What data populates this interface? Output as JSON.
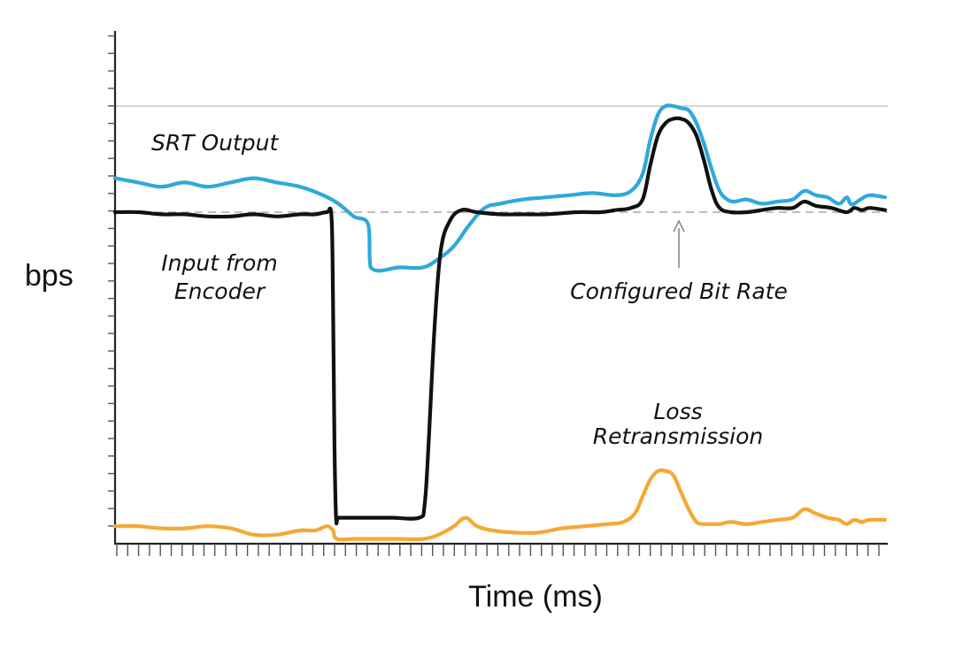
{
  "chart_data": {
    "type": "line",
    "xlabel": "Time (ms)",
    "ylabel": "bps",
    "grid": false,
    "xlim": [
      0,
      100
    ],
    "ylim": [
      0,
      100
    ],
    "reference_lines": [
      {
        "label": "",
        "y": 100,
        "style": "solid",
        "color": "#c8c8c8"
      },
      {
        "label": "Configured Bit Rate",
        "y": 75,
        "style": "dashed",
        "color": "#aaaaaa"
      }
    ],
    "series": [
      {
        "key": "srt",
        "name": "SRT Output",
        "color": "#2fa8dc",
        "x": [
          0,
          3,
          6,
          9,
          12,
          15,
          18,
          21,
          24,
          27,
          29,
          31,
          32.9,
          33.2,
          37,
          40,
          42,
          44,
          46,
          48,
          50,
          53,
          56,
          59,
          62,
          65,
          67,
          68.5,
          69.5,
          70.5,
          71.5,
          72.5,
          73.5,
          74.5,
          75.5,
          76.5,
          77.5,
          78.5,
          79.5,
          80.5,
          82,
          84,
          86,
          88,
          89.5,
          91,
          92.5,
          94,
          95,
          95.5,
          96,
          96.8,
          98,
          100
        ],
        "y": [
          83,
          82,
          81,
          82,
          81,
          82,
          83,
          82,
          81,
          79,
          77,
          74,
          72,
          62,
          62,
          62,
          64,
          67,
          72,
          76,
          77,
          78,
          78.5,
          79,
          79.5,
          79,
          80,
          84,
          92,
          98,
          100,
          100,
          99.5,
          99,
          96,
          91,
          85,
          80,
          78,
          77.5,
          78,
          77,
          77.5,
          78,
          80,
          79,
          78.5,
          77,
          78.5,
          77,
          77,
          78,
          79,
          78.5
        ]
      },
      {
        "key": "input",
        "name": "Input from Encoder",
        "color": "#111111",
        "x": [
          0,
          3,
          6,
          9,
          12,
          15,
          18,
          21,
          24,
          26,
          27.5,
          28.1,
          28.3,
          28.5,
          28.7,
          29,
          33,
          36,
          39.5,
          40.2,
          40.7,
          41.5,
          42.3,
          43.5,
          45,
          47,
          50,
          53,
          56,
          60,
          63,
          65,
          67,
          68.5,
          69.5,
          70.5,
          71.5,
          72.5,
          73.5,
          74.5,
          75.5,
          76.5,
          77.5,
          78.5,
          80,
          82,
          84,
          86,
          88,
          89.5,
          91,
          93,
          95,
          96,
          97,
          98,
          100
        ],
        "y": [
          75,
          75,
          74.5,
          74.5,
          74,
          74,
          74.5,
          74,
          74.5,
          74.5,
          75,
          74,
          55,
          20,
          3,
          3,
          3,
          3,
          3,
          6,
          20,
          48,
          66,
          73,
          75.5,
          75,
          74.5,
          74.5,
          74.5,
          75,
          75,
          75.5,
          76,
          78,
          86,
          93,
          96,
          97,
          97,
          96,
          93,
          87,
          80,
          76,
          75,
          75,
          75.5,
          76,
          76,
          77.5,
          76.5,
          76,
          75,
          76,
          75.5,
          76,
          75.5
        ]
      },
      {
        "key": "loss",
        "name": "Loss Retransmission",
        "color": "#f5a833",
        "x": [
          0,
          3,
          6,
          9,
          12,
          15,
          18,
          21,
          24,
          26,
          27.5,
          28.3,
          28.8,
          31,
          34,
          37,
          40,
          42,
          44,
          45.5,
          47,
          49,
          52,
          55,
          58,
          61,
          64,
          66,
          67.5,
          68.5,
          69.5,
          70.5,
          71.5,
          72.5,
          73.5,
          74.5,
          75.5,
          76.5,
          77.5,
          78.5,
          80,
          82,
          84,
          86,
          88,
          89.5,
          91,
          92.5,
          94,
          95,
          96,
          97,
          98,
          100
        ],
        "y": [
          1,
          1,
          0.5,
          0.5,
          1,
          0.5,
          -1,
          -1,
          0,
          0,
          1,
          0,
          -2,
          -2,
          -2,
          -2,
          -2,
          -1,
          1,
          3,
          1,
          0,
          -0.5,
          -0.5,
          0.5,
          1,
          1.5,
          2,
          4,
          8,
          12,
          14,
          14,
          13,
          9,
          5,
          2,
          1.5,
          1.5,
          1.5,
          2,
          1.5,
          2,
          2.5,
          3,
          5,
          4,
          3,
          2.5,
          1.5,
          2.5,
          2,
          2.5,
          2.5
        ]
      }
    ],
    "annotations": [
      {
        "key": "srt_label",
        "lines": [
          "SRT Output"
        ]
      },
      {
        "key": "input_label",
        "lines": [
          "Input from",
          "Encoder"
        ]
      },
      {
        "key": "bitrate_label",
        "lines": [
          "Configured Bit Rate"
        ]
      },
      {
        "key": "loss_label",
        "lines": [
          "Loss",
          "Retransmission"
        ]
      }
    ]
  }
}
